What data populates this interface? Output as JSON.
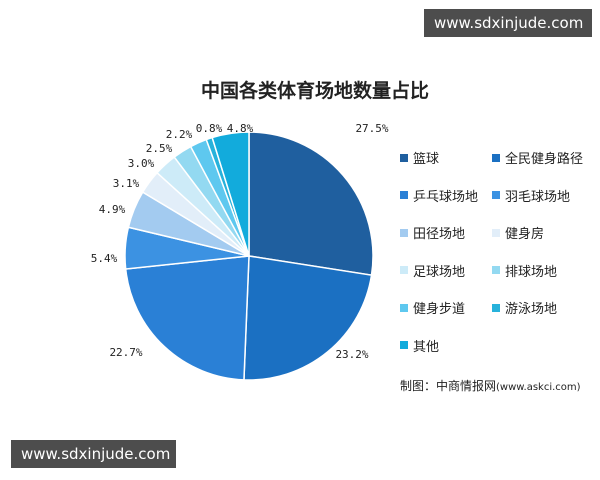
{
  "watermark_top": "www.sdxinjude.com",
  "watermark_bottom": "www.sdxinjude.com",
  "chart_data": {
    "type": "pie",
    "title": "中国各类体育场地数量占比",
    "unit": "%",
    "slices": [
      {
        "label": "篮球",
        "value": 27.5,
        "display": "27.5%",
        "color": "#1f5f9f"
      },
      {
        "label": "全民健身路径",
        "value": 23.2,
        "display": "23.2%",
        "color": "#1b70c2"
      },
      {
        "label": "乒乓球场地",
        "value": 22.7,
        "display": "22.7%",
        "color": "#2a80d6"
      },
      {
        "label": "羽毛球场地",
        "value": 5.4,
        "display": "5.4%",
        "color": "#3c92e2"
      },
      {
        "label": "田径场地",
        "value": 4.9,
        "display": "4.9%",
        "color": "#a3cbf0"
      },
      {
        "label": "健身房",
        "value": 3.1,
        "display": "3.1%",
        "color": "#e2eef9"
      },
      {
        "label": "足球场地",
        "value": 3.0,
        "display": "3.0%",
        "color": "#cdebf8"
      },
      {
        "label": "排球场地",
        "value": 2.5,
        "display": "2.5%",
        "color": "#93d9f1"
      },
      {
        "label": "健身步道",
        "value": 2.2,
        "display": "2.2%",
        "color": "#5ec8ef"
      },
      {
        "label": "游泳场地",
        "value": 0.8,
        "display": "0.8%",
        "color": "#27b2db"
      },
      {
        "label": "其他",
        "value": 4.8,
        "display": "4.8%",
        "color": "#12abdc"
      }
    ],
    "legend_position": "right",
    "source": "制图：中商情报网",
    "source_url": "(www.askci.com)"
  }
}
